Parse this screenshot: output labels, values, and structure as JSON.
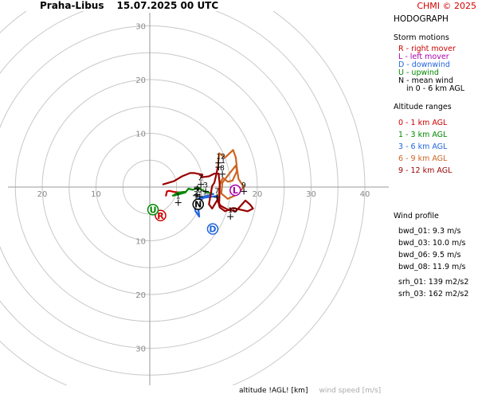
{
  "header": {
    "station": "Praha-Libus",
    "datetime": "15.07.2025 00 UTC",
    "credit": "CHMI © 2025"
  },
  "legend": {
    "title": "HODOGRAPH",
    "storm_motions_title": "Storm motions",
    "storm_motions": [
      {
        "text": "R - right mover",
        "color": "#cc0000"
      },
      {
        "text": "L - left mover",
        "color": "#aa00aa"
      },
      {
        "text": "D - downwind",
        "color": "#2266dd"
      },
      {
        "text": "U - upwind",
        "color": "#008800"
      },
      {
        "text": "N - mean wind",
        "color": "#000000"
      },
      {
        "text": "in 0 - 6 km AGL",
        "color": "#000000"
      }
    ],
    "altitude_title": "Altitude ranges",
    "altitude_ranges": [
      {
        "text": "0 - 1 km AGL",
        "color": "#cc0000"
      },
      {
        "text": "1 - 3 km AGL",
        "color": "#008800"
      },
      {
        "text": "3 - 6 km AGL",
        "color": "#2266dd"
      },
      {
        "text": "6 - 9 km AGL",
        "color": "#cc6622"
      },
      {
        "text": "9 - 12 km AGL",
        "color": "#990000"
      }
    ]
  },
  "wind_profile": {
    "title": "Wind profile",
    "bwd": [
      "bwd_01: 9.3 m/s",
      "bwd_03: 10.0 m/s",
      "bwd_06: 9.5 m/s",
      "bwd_08: 11.9 m/s"
    ],
    "srh": [
      "srh_01: 139 m2/s2",
      "srh_03: 162 m2/s2"
    ]
  },
  "footer": {
    "altitude": "altitude !AGL! [km]",
    "wind_speed": "wind speed [m/s]"
  },
  "chart_data": {
    "type": "hodograph",
    "title": "HODOGRAPH",
    "rings": [
      5,
      10,
      15,
      20,
      25,
      30,
      35,
      40
    ],
    "ring_labels": [
      "10",
      "20",
      "30",
      "40"
    ],
    "up_labels": [
      "30",
      "20",
      "10"
    ],
    "left_labels": [
      "20",
      "10"
    ],
    "down_labels": [
      "10",
      "20",
      "30"
    ],
    "right_labels": [
      "10",
      "20",
      "30",
      "40"
    ],
    "grid": true,
    "altitude_segments": [
      {
        "range": "0 - 1 km AGL",
        "color": "#cc0000",
        "points": [
          [
            3.0,
            -1.6
          ],
          [
            3.2,
            -0.8
          ],
          [
            3.6,
            -0.7
          ],
          [
            4.5,
            -0.9
          ],
          [
            5.5,
            -1.0
          ],
          [
            6.5,
            -0.9
          ]
        ]
      },
      {
        "range": "1 - 3 km AGL",
        "color": "#008800",
        "points": [
          [
            6.5,
            -0.9
          ],
          [
            5.3,
            -1.0
          ],
          [
            4.3,
            -1.6
          ],
          [
            5.2,
            -1.4
          ],
          [
            6.6,
            -1.0
          ],
          [
            7.2,
            -0.3
          ],
          [
            8.0,
            -0.5
          ],
          [
            9.0,
            -0.1
          ],
          [
            10.2,
            -0.8
          ],
          [
            11.8,
            -1.3
          ]
        ]
      },
      {
        "range": "3 - 6 km AGL",
        "color": "#2266dd",
        "points": [
          [
            11.8,
            -1.3
          ],
          [
            10.0,
            -1.8
          ],
          [
            9.0,
            -2.2
          ],
          [
            8.2,
            -3.0
          ],
          [
            8.5,
            -4.5
          ],
          [
            9.2,
            -5.5
          ],
          [
            8.9,
            -3.0
          ],
          [
            10.0,
            -2.0
          ],
          [
            11.5,
            -1.8
          ],
          [
            12.8,
            -1.6
          ]
        ]
      },
      {
        "range": "6 - 9 km AGL",
        "color": "#cc6622",
        "points": [
          [
            12.8,
            -1.6
          ],
          [
            13.0,
            0.5
          ],
          [
            13.6,
            1.7
          ],
          [
            14.5,
            1.0
          ],
          [
            15.4,
            1.2
          ],
          [
            16.2,
            3.0
          ],
          [
            16.0,
            4.0
          ],
          [
            14.8,
            2.5
          ],
          [
            13.5,
            0.8
          ],
          [
            13.3,
            -1.2
          ],
          [
            14.5,
            -2.2
          ],
          [
            16.0,
            -1.5
          ],
          [
            17.5,
            0.0
          ],
          [
            16.5,
            1.5
          ],
          [
            16.2,
            3.5
          ],
          [
            16.0,
            5.5
          ],
          [
            15.5,
            6.9
          ],
          [
            14.0,
            5.5
          ],
          [
            12.9,
            6.3
          ],
          [
            12.6,
            3.5
          ]
        ]
      },
      {
        "range": "9 - 12 km AGL",
        "color": "#990000",
        "points": [
          [
            12.6,
            3.5
          ],
          [
            12.3,
            2.0
          ],
          [
            12.0,
            0.8
          ],
          [
            11.6,
            0.2
          ],
          [
            11.3,
            -1.5
          ],
          [
            11.0,
            -3.2
          ],
          [
            11.6,
            -4.0
          ],
          [
            12.5,
            -2.5
          ],
          [
            13.2,
            -3.5
          ],
          [
            14.5,
            -4.2
          ],
          [
            16.0,
            -4.5
          ],
          [
            17.8,
            -2.5
          ],
          [
            18.7,
            -3.3
          ],
          [
            19.2,
            -4.0
          ],
          [
            18.2,
            -4.5
          ],
          [
            15.5,
            -3.9
          ],
          [
            14.0,
            -4.5
          ],
          [
            13.0,
            -3.8
          ],
          [
            12.5,
            -1.9
          ],
          [
            12.9,
            -3.2
          ],
          [
            13.0,
            0.5
          ],
          [
            12.8,
            2.5
          ],
          [
            12.0,
            2.5
          ],
          [
            11.0,
            2.0
          ],
          [
            9.5,
            1.8
          ],
          [
            9.8,
            2.3
          ],
          [
            8.3,
            2.6
          ],
          [
            7.5,
            2.6
          ],
          [
            6.0,
            2.0
          ],
          [
            4.5,
            1.1
          ],
          [
            2.5,
            0.5
          ]
        ]
      }
    ],
    "altitude_markers": [
      {
        "label": "1",
        "u": 5.3,
        "v": -2.9
      },
      {
        "label": "2",
        "u": 9.5,
        "v": 0.5
      },
      {
        "label": "3",
        "u": 10.4,
        "v": -0.8
      },
      {
        "label": "4",
        "u": 8.8,
        "v": -1.4
      },
      {
        "label": "5",
        "u": 8.6,
        "v": -1.6
      },
      {
        "label": "6",
        "u": 9.3,
        "v": -1.8
      },
      {
        "label": "7",
        "u": 12.5,
        "v": -1.9
      },
      {
        "label": "8",
        "u": 13.5,
        "v": 2.4
      },
      {
        "label": "9",
        "u": 17.5,
        "v": -0.8
      },
      {
        "label": "10",
        "u": 15.0,
        "v": -5.5
      },
      {
        "label": "11",
        "u": 12.8,
        "v": 3.7
      },
      {
        "label": "12",
        "u": 12.8,
        "v": 4.5
      }
    ],
    "storm_motions": [
      {
        "label": "R",
        "u": 2.0,
        "v": -5.3,
        "color": "#cc0000"
      },
      {
        "label": "L",
        "u": 15.9,
        "v": -0.6,
        "color": "#aa00aa"
      },
      {
        "label": "D",
        "u": 11.7,
        "v": -7.8,
        "color": "#2266dd"
      },
      {
        "label": "U",
        "u": 0.6,
        "v": -4.2,
        "color": "#008800"
      },
      {
        "label": "N",
        "u": 9.0,
        "v": -3.2,
        "color": "#000000"
      }
    ]
  }
}
